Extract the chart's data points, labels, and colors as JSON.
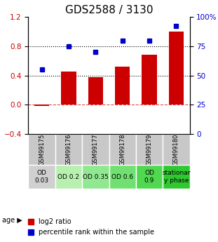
{
  "title": "GDS2588 / 3130",
  "samples": [
    "GSM99175",
    "GSM99176",
    "GSM99177",
    "GSM99178",
    "GSM99179",
    "GSM99180"
  ],
  "log2_ratio": [
    -0.02,
    0.45,
    0.38,
    0.52,
    0.68,
    1.0
  ],
  "percentile_rank": [
    55,
    75,
    70,
    80,
    80,
    92
  ],
  "age_labels": [
    "OD\n0.03",
    "OD 0.2",
    "OD 0.35",
    "OD 0.6",
    "OD\n0.9",
    "stationar\ny phase"
  ],
  "age_bg_colors": [
    "#d0d0d0",
    "#b8f0b0",
    "#90e890",
    "#70e070",
    "#50d850",
    "#30c830"
  ],
  "sample_bg_color": "#c8c8c8",
  "bar_color": "#cc0000",
  "dot_color": "#0000cc",
  "left_ylim": [
    -0.4,
    1.2
  ],
  "right_ylim": [
    0,
    100
  ],
  "left_yticks": [
    -0.4,
    0,
    0.4,
    0.8,
    1.2
  ],
  "right_yticks": [
    0,
    25,
    50,
    75,
    100
  ],
  "right_yticklabels": [
    "0",
    "25",
    "50",
    "75",
    "100%"
  ],
  "hlines": [
    0.4,
    0.8
  ],
  "zero_line": 0.0,
  "title_fontsize": 11,
  "tick_fontsize": 7.5,
  "legend_fontsize": 7,
  "age_label_fontsize": 6.5,
  "sample_label_fontsize": 6
}
